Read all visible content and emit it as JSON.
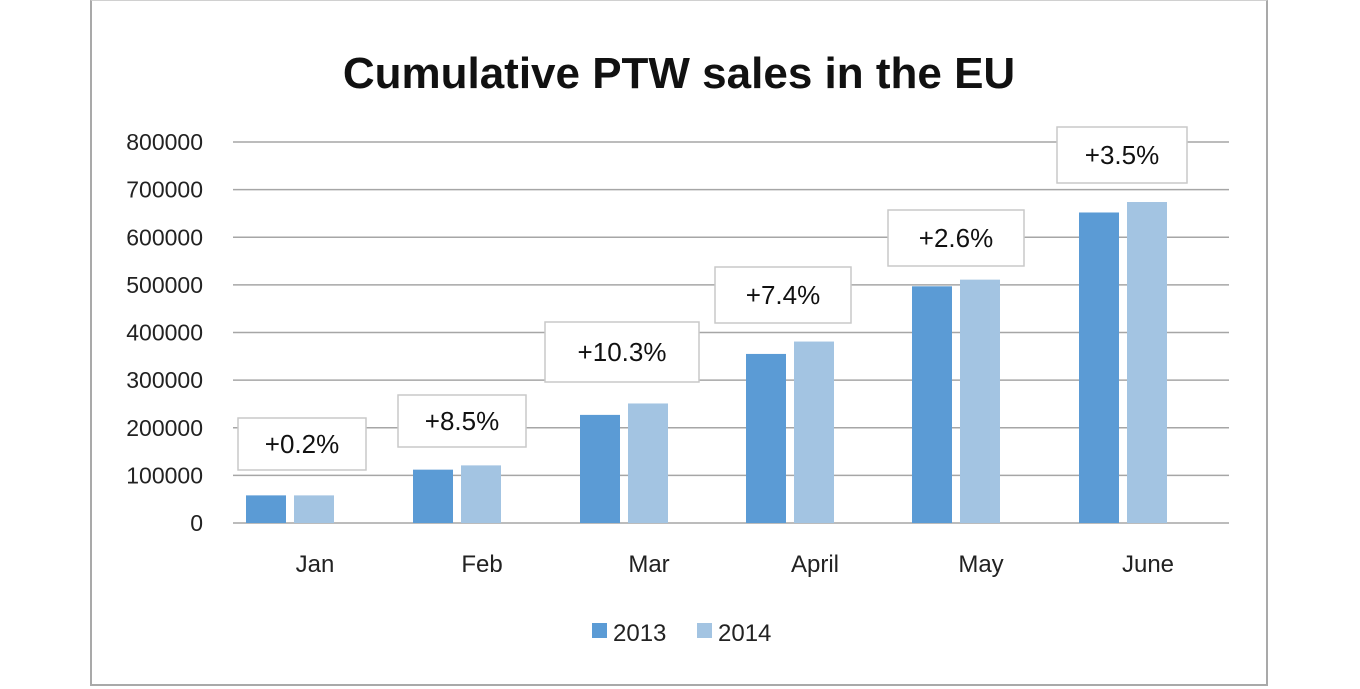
{
  "colors": {
    "series_2013": "#5b9bd5",
    "series_2014": "#a3c4e2",
    "gridline": "#a6a6a6",
    "annotation_border": "#c9c9c9",
    "frame": "#a9a9a9"
  },
  "chart_data": {
    "type": "bar",
    "title": "Cumulative PTW sales in the EU",
    "xlabel": "",
    "ylabel": "",
    "categories": [
      "Jan",
      "Feb",
      "Mar",
      "April",
      "May",
      "June"
    ],
    "series": [
      {
        "name": "2013",
        "values": [
          58000,
          112000,
          227000,
          355000,
          497000,
          652000
        ]
      },
      {
        "name": "2014",
        "values": [
          58000,
          121000,
          251000,
          381000,
          511000,
          674000
        ]
      }
    ],
    "annotations": [
      "+0.2%",
      "+8.5%",
      "+10.3%",
      "+7.4%",
      "+2.6%",
      "+3.5%"
    ],
    "ylim": [
      0,
      800000
    ],
    "yticks": [
      0,
      100000,
      200000,
      300000,
      400000,
      500000,
      600000,
      700000,
      800000
    ],
    "ytick_labels": [
      "0",
      "100000",
      "200000",
      "300000",
      "400000",
      "500000",
      "600000",
      "700000",
      "800000"
    ],
    "grid": true,
    "legend_position": "bottom-center"
  }
}
